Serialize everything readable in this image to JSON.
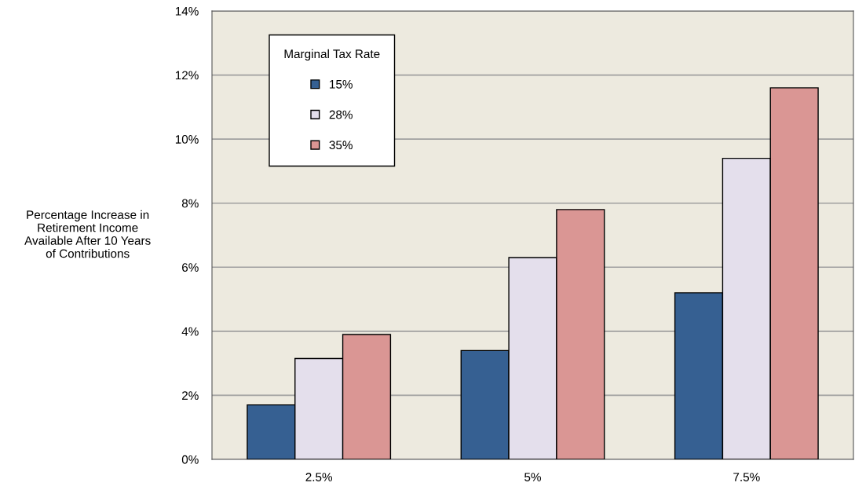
{
  "chart_data": {
    "type": "bar",
    "ylabel": "Percentage Increase in\nRetirement Income\nAvailable After 10 Years\nof Contributions",
    "legend_title": "Marginal Tax Rate",
    "categories": [
      "2.5%",
      "5%",
      "7.5%"
    ],
    "series": [
      {
        "name": "15%",
        "color": "#366092",
        "values": [
          1.7,
          3.4,
          5.2
        ]
      },
      {
        "name": "28%",
        "color": "#e4dfec",
        "values": [
          3.15,
          6.3,
          9.4
        ]
      },
      {
        "name": "35%",
        "color": "#da9694",
        "values": [
          3.9,
          7.8,
          11.6
        ]
      }
    ],
    "ylim": [
      0,
      14
    ],
    "yticks": [
      {
        "value": 0,
        "label": "0%"
      },
      {
        "value": 2,
        "label": "2%"
      },
      {
        "value": 4,
        "label": "4%"
      },
      {
        "value": 6,
        "label": "6%"
      },
      {
        "value": 8,
        "label": "8%"
      },
      {
        "value": 10,
        "label": "10%"
      },
      {
        "value": 12,
        "label": "12%"
      },
      {
        "value": 14,
        "label": "14%"
      }
    ],
    "grid": "y",
    "legend": "top left"
  }
}
